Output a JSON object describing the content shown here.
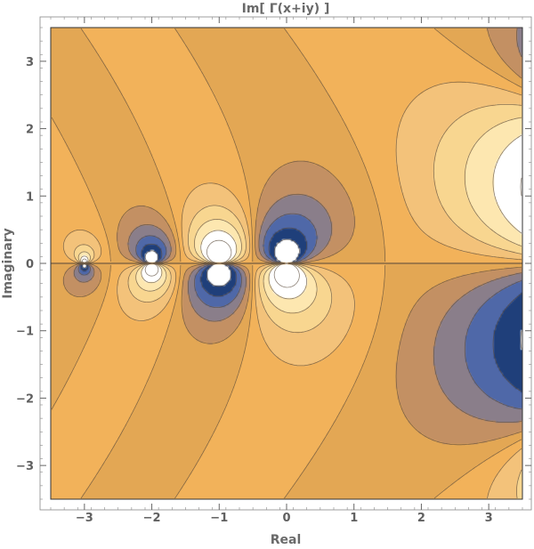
{
  "chart_data": {
    "type": "contour",
    "title": "Im[ Γ(x+iy) ]",
    "xlabel": "Real",
    "ylabel": "Imaginary",
    "xlim": [
      -3.5,
      3.5
    ],
    "ylim": [
      -3.5,
      3.5
    ],
    "x_ticks": [
      -3,
      -2,
      -1,
      0,
      1,
      2,
      3
    ],
    "y_ticks": [
      -3,
      -2,
      -1,
      0,
      1,
      2,
      3
    ],
    "x_tick_labels": [
      "−3",
      "−2",
      "−1",
      "0",
      "1",
      "2",
      "3"
    ],
    "y_tick_labels": [
      "−3",
      "−2",
      "−1",
      "0",
      "1",
      "2",
      "3"
    ],
    "function": "Im[Gamma(x+iy)]",
    "contour_levels": [
      -2.5,
      -1.5,
      -0.9,
      -0.5,
      -0.2,
      0,
      0.2,
      0.5,
      0.9,
      1.5,
      2.5
    ],
    "band_colors": [
      "#1f3f7a",
      "#4f68a8",
      "#8a7e8a",
      "#c39063",
      "#e3a754",
      "#f2b25a",
      "#f3c27a",
      "#f8d690",
      "#fde7b0",
      "#ffffff"
    ],
    "out_of_range_color": "#ffffff",
    "grid": false,
    "legend": "none"
  }
}
